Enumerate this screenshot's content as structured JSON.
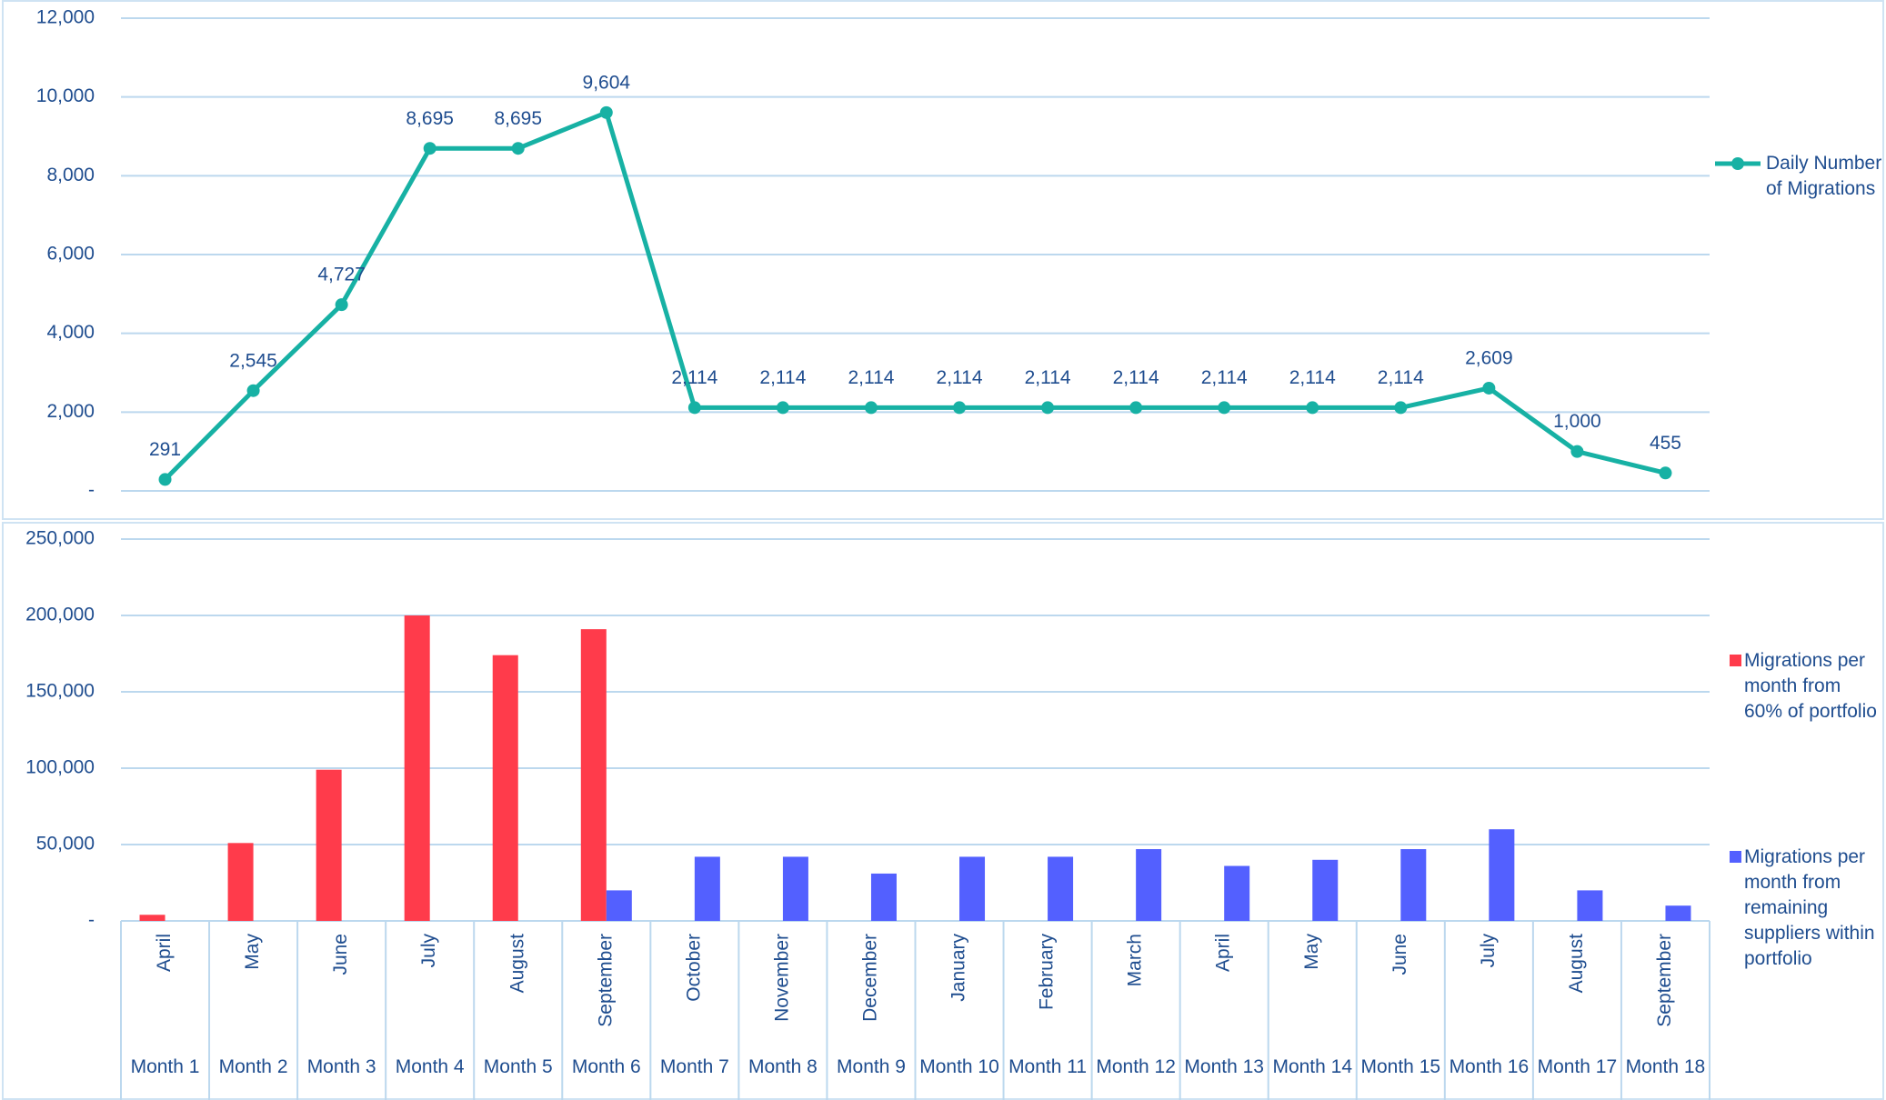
{
  "chart_data": [
    {
      "type": "line",
      "series": [
        {
          "name": "Daily Number of Migrations",
          "color": "#17b1a4",
          "values": [
            291,
            2545,
            4727,
            8695,
            8695,
            9604,
            2114,
            2114,
            2114,
            2114,
            2114,
            2114,
            2114,
            2114,
            2114,
            2609,
            1000,
            455
          ],
          "value_labels": [
            "291",
            "2,545",
            "4,727",
            "8,695",
            "8,695",
            "9,604",
            "2,114",
            "2,114",
            "2,114",
            "2,114",
            "2,114",
            "2,114",
            "2,114",
            "2,114",
            "2,114",
            "2,609",
            "1,000",
            "455"
          ]
        }
      ],
      "ylim": [
        0,
        12000
      ],
      "yticks": [
        {
          "value": 0,
          "label": "-"
        },
        {
          "value": 2000,
          "label": "2,000"
        },
        {
          "value": 4000,
          "label": "4,000"
        },
        {
          "value": 6000,
          "label": "6,000"
        },
        {
          "value": 8000,
          "label": "8,000"
        },
        {
          "value": 10000,
          "label": "10,000"
        },
        {
          "value": 12000,
          "label": "12,000"
        }
      ],
      "grid": true,
      "legend": "right"
    },
    {
      "type": "bar",
      "categories": [
        "April",
        "May",
        "June",
        "July",
        "August",
        "September",
        "October",
        "November",
        "December",
        "January",
        "February",
        "March",
        "April",
        "May",
        "June",
        "July",
        "August",
        "September"
      ],
      "periods": [
        "Month 1",
        "Month 2",
        "Month 3",
        "Month 4",
        "Month 5",
        "Month 6",
        "Month 7",
        "Month 8",
        "Month 9",
        "Month 10",
        "Month 11",
        "Month 12",
        "Month 13",
        "Month 14",
        "Month 15",
        "Month 16",
        "Month 17",
        "Month 18"
      ],
      "series": [
        {
          "name": "Migrations per month from 60% of portfolio",
          "color": "#ff3b4b",
          "values": [
            4000,
            51000,
            99000,
            200000,
            174000,
            191000,
            null,
            null,
            null,
            null,
            null,
            null,
            null,
            null,
            null,
            null,
            null,
            null
          ]
        },
        {
          "name": "Migrations per month from remaining suppliers within portfolio",
          "color": "#5360ff",
          "values": [
            null,
            null,
            null,
            null,
            null,
            20000,
            42000,
            42000,
            31000,
            42000,
            42000,
            47000,
            36000,
            40000,
            47000,
            60000,
            20000,
            10000
          ]
        }
      ],
      "ylim": [
        0,
        250000
      ],
      "yticks": [
        {
          "value": 0,
          "label": "-"
        },
        {
          "value": 50000,
          "label": "50,000"
        },
        {
          "value": 100000,
          "label": "100,000"
        },
        {
          "value": 150000,
          "label": "150,000"
        },
        {
          "value": 200000,
          "label": "200,000"
        },
        {
          "value": 250000,
          "label": "250,000"
        }
      ],
      "grid": true,
      "legend": "right"
    }
  ]
}
